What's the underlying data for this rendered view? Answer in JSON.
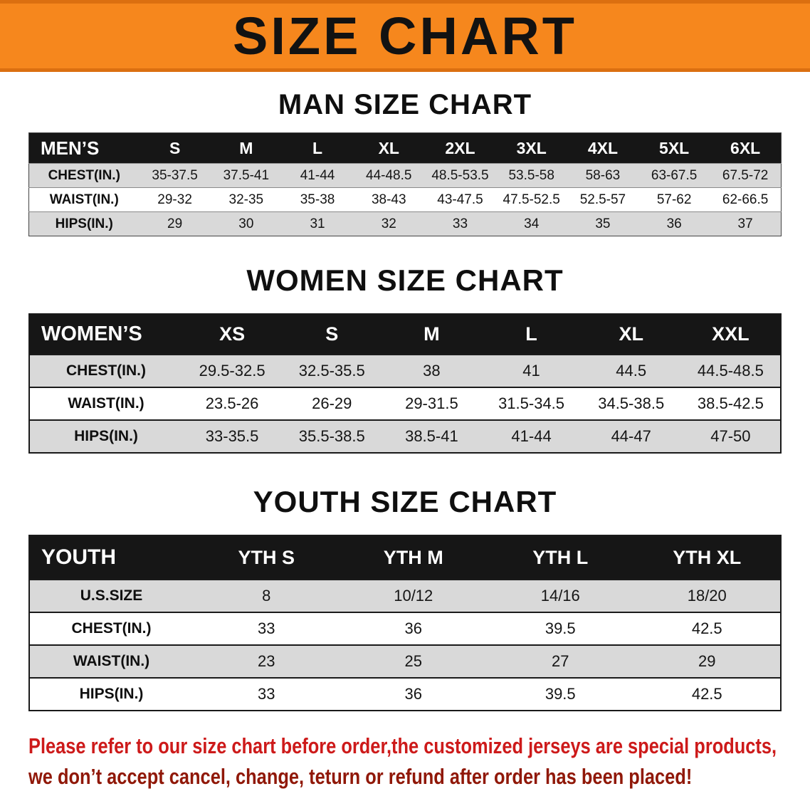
{
  "banner": {
    "title": "SIZE CHART"
  },
  "chart_data": [
    {
      "type": "table",
      "title": "MAN SIZE CHART",
      "columns": [
        "MEN’S",
        "S",
        "M",
        "L",
        "XL",
        "2XL",
        "3XL",
        "4XL",
        "5XL",
        "6XL"
      ],
      "rows": [
        [
          "CHEST(IN.)",
          "35-37.5",
          "37.5-41",
          "41-44",
          "44-48.5",
          "48.5-53.5",
          "53.5-58",
          "58-63",
          "63-67.5",
          "67.5-72"
        ],
        [
          "WAIST(IN.)",
          "29-32",
          "32-35",
          "35-38",
          "38-43",
          "43-47.5",
          "47.5-52.5",
          "52.5-57",
          "57-62",
          "62-66.5"
        ],
        [
          "HIPS(IN.)",
          "29",
          "30",
          "31",
          "32",
          "33",
          "34",
          "35",
          "36",
          "37"
        ]
      ]
    },
    {
      "type": "table",
      "title": "WOMEN SIZE CHART",
      "columns": [
        "WOMEN’S",
        "XS",
        "S",
        "M",
        "L",
        "XL",
        "XXL"
      ],
      "rows": [
        [
          "CHEST(IN.)",
          "29.5-32.5",
          "32.5-35.5",
          "38",
          "41",
          "44.5",
          "44.5-48.5"
        ],
        [
          "WAIST(IN.)",
          "23.5-26",
          "26-29",
          "29-31.5",
          "31.5-34.5",
          "34.5-38.5",
          "38.5-42.5"
        ],
        [
          "HIPS(IN.)",
          "33-35.5",
          "35.5-38.5",
          "38.5-41",
          "41-44",
          "44-47",
          "47-50"
        ]
      ]
    },
    {
      "type": "table",
      "title": "YOUTH SIZE CHART",
      "columns": [
        "YOUTH",
        "YTH S",
        "YTH M",
        "YTH L",
        "YTH XL"
      ],
      "rows": [
        [
          "U.S.SIZE",
          "8",
          "10/12",
          "14/16",
          "18/20"
        ],
        [
          "CHEST(IN.)",
          "33",
          "36",
          "39.5",
          "42.5"
        ],
        [
          "WAIST(IN.)",
          "23",
          "25",
          "27",
          "29"
        ],
        [
          "HIPS(IN.)",
          "33",
          "36",
          "39.5",
          "42.5"
        ]
      ]
    }
  ],
  "footer": {
    "line1": "Please refer to our size chart before order,the customized jerseys are special products,",
    "line2": "we don’t accept cancel, change, teturn or refund after order has been placed!"
  },
  "colors": {
    "banner_bg": "#f6871d",
    "table_header_bg": "#161616",
    "row_alt_bg": "#d9d9d9",
    "disclaimer_red_1": "#cd1a1a",
    "disclaimer_red_2": "#901808"
  }
}
